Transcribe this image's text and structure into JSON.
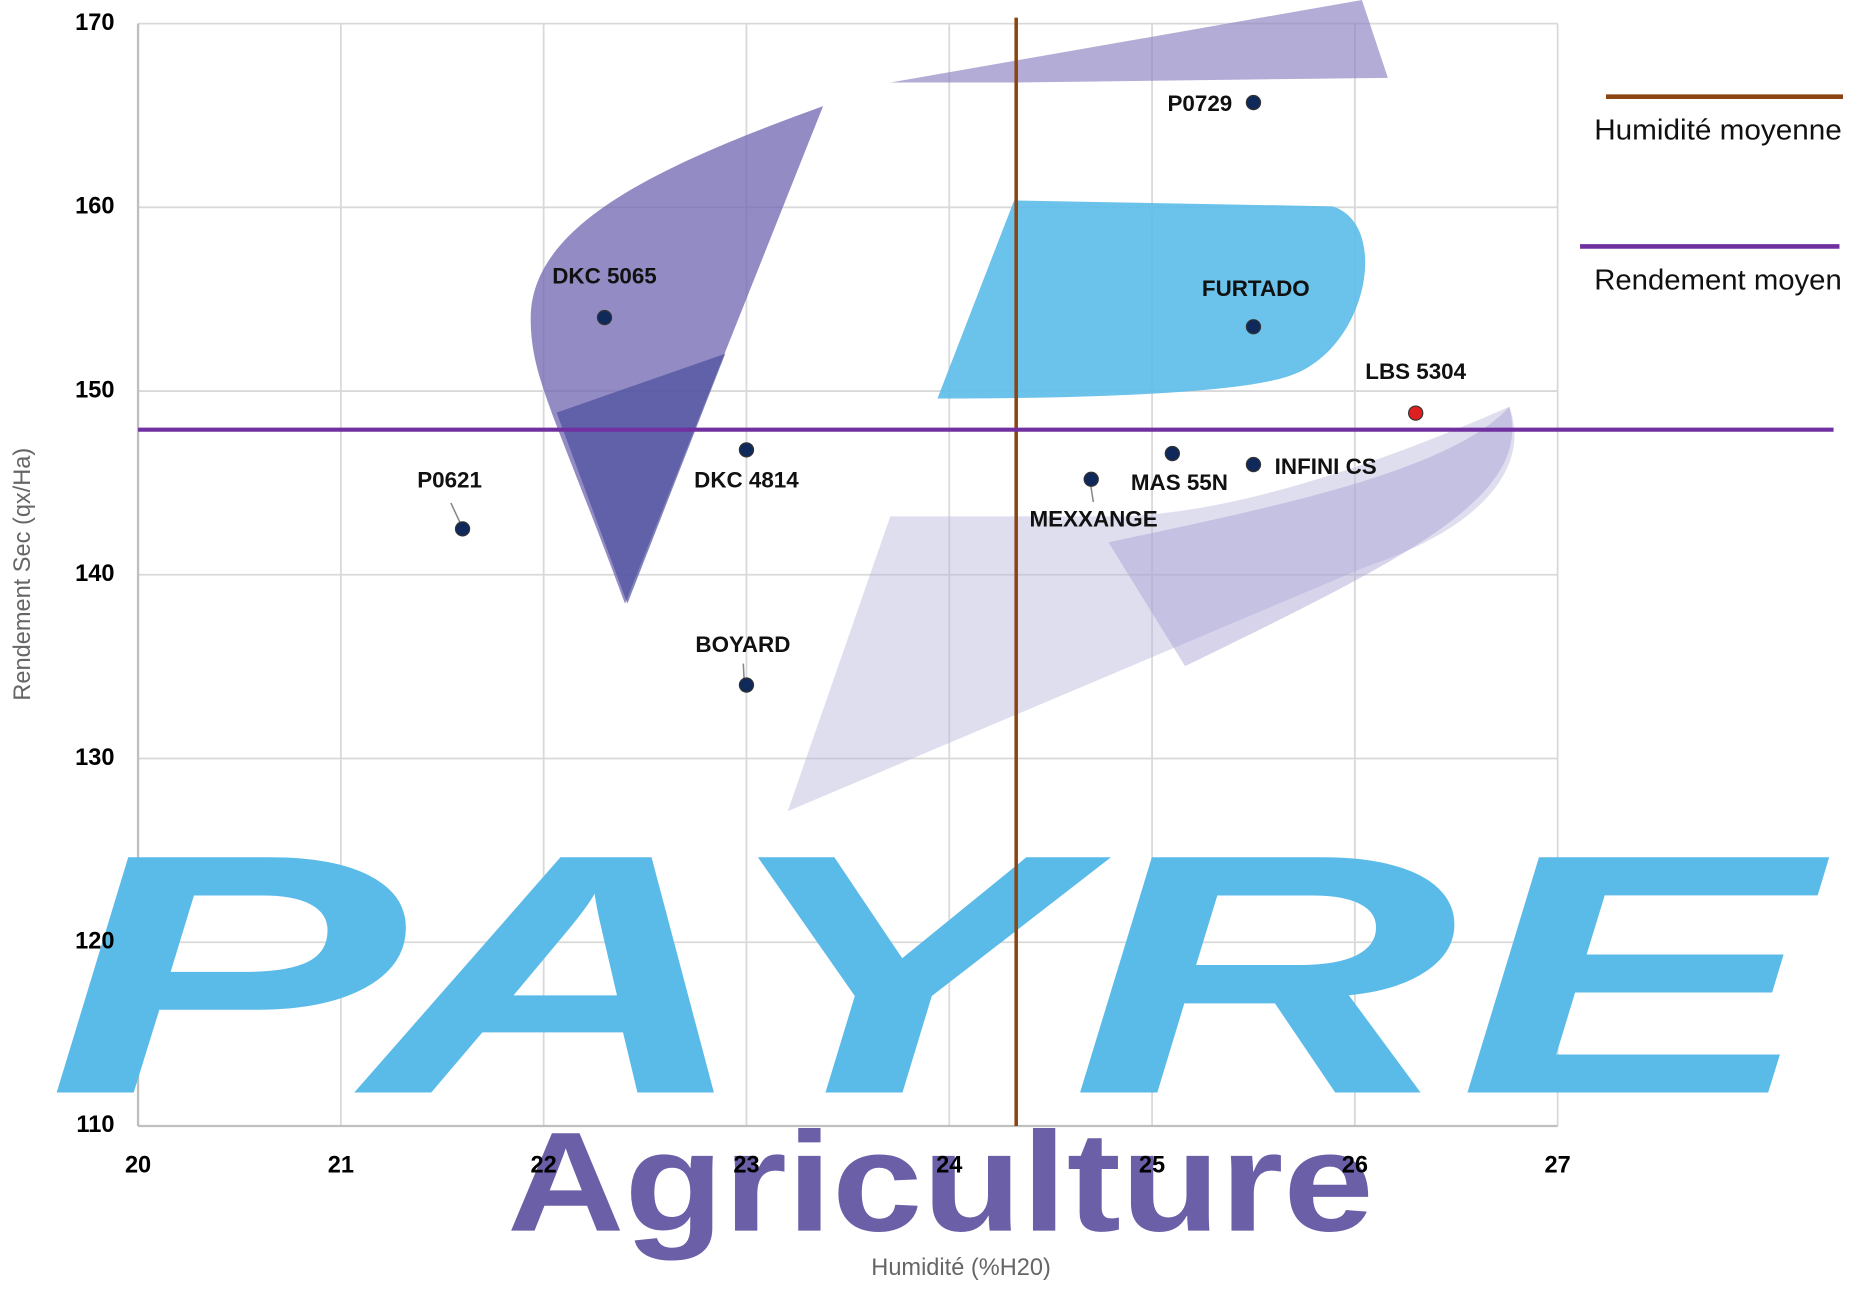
{
  "chart_data": {
    "type": "scatter",
    "xlabel": "Humidité (%H20)",
    "ylabel": "Rendement  Sec (qx/Ha)",
    "labels": [
      "P0729",
      "DKC 5065",
      "FURTADO",
      "LBS 5304",
      "DKC 4814",
      "P0621",
      "BOYARD",
      "MEXXANGE",
      "MAS 55N",
      "INFINI CS"
    ],
    "x": [
      25.5,
      22.3,
      25.5,
      26.3,
      23,
      21.6,
      23,
      24.7,
      25.1,
      25.5
    ],
    "values": [
      165.7,
      154,
      153.5,
      148.8,
      146.8,
      142.5,
      134,
      145.2,
      146.6,
      146
    ],
    "colors": [
      "#0f2a5a",
      "#0f2a5a",
      "#0f2a5a",
      "#e02020",
      "#0f2a5a",
      "#0f2a5a",
      "#0f2a5a",
      "#0f2a5a",
      "#0f2a5a",
      "#0f2a5a"
    ],
    "reference_lines": [
      {
        "name": "Humidité moyenne",
        "axis": "x",
        "value": 24.33,
        "color": "#8b4513"
      },
      {
        "name": "Rendement moyen",
        "axis": "y",
        "value": 147.9,
        "color": "#7030a0"
      }
    ],
    "xlim": [
      20,
      27
    ],
    "xticks": [
      20,
      21,
      22,
      23,
      24,
      25,
      26,
      27
    ],
    "ylim": [
      110,
      170
    ],
    "yticks": [
      110,
      120,
      130,
      140,
      150,
      160,
      170
    ],
    "grid": true,
    "legend": "right",
    "watermark": [
      "PAYRE",
      "Agriculture"
    ]
  }
}
